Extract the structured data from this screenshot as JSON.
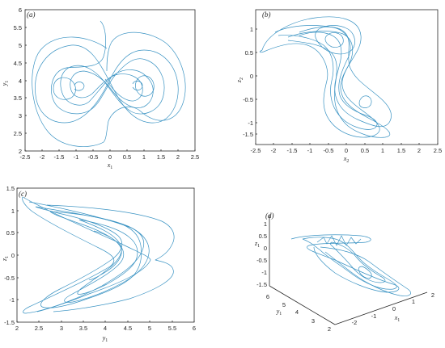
{
  "colors": {
    "trajectory": "#3a93c3",
    "axis": "#262626"
  },
  "chart_data": [
    {
      "type": "line",
      "panel_label": "(a)",
      "xlabel": "x1",
      "ylabel": "y1",
      "xlim": [
        -2.5,
        2.5
      ],
      "ylim": [
        2,
        6
      ],
      "xticks": [
        "-2.5",
        "-2",
        "-1.5",
        "-1",
        "-0.5",
        "0",
        "0.5",
        "1",
        "1.5",
        "2",
        "2.5"
      ],
      "yticks": [
        "2",
        "2.5",
        "3",
        "3.5",
        "4",
        "4.5",
        "5",
        "5.5",
        "6"
      ],
      "series": [
        {
          "x": [
            -1.6,
            -1.2,
            -0.8,
            -0.3,
            0.3,
            0.8,
            1.2,
            1.6
          ],
          "y": [
            3.9,
            4.4,
            4.2,
            3.8,
            3.6,
            3.4,
            3.8,
            4.1
          ]
        }
      ]
    },
    {
      "type": "line",
      "panel_label": "(b)",
      "xlabel": "x2",
      "ylabel": "z2",
      "xlim": [
        -2.5,
        2.5
      ],
      "ylim": [
        -1.5,
        1.25
      ],
      "xticks": [
        "-2.5",
        "-2",
        "-1.5",
        "-1",
        "-0.5",
        "0",
        "0.5",
        "1",
        "1.5",
        "2",
        "2.5"
      ],
      "yticks": [
        "-1.5",
        "-1",
        "-0.5",
        "0",
        "0.5",
        "1"
      ],
      "series": [
        {
          "x": [
            -2.1,
            -1.2,
            -0.5,
            0.3,
            0.9,
            1.4
          ],
          "y": [
            1.05,
            0.8,
            0.3,
            -0.3,
            -0.7,
            -1.1
          ]
        }
      ]
    },
    {
      "type": "line",
      "panel_label": "(c)",
      "xlabel": "y1",
      "ylabel": "z1",
      "xlim": [
        2,
        6
      ],
      "ylim": [
        -1.5,
        1.5
      ],
      "xticks": [
        "2",
        "2.5",
        "3",
        "3.5",
        "4",
        "4.5",
        "5",
        "5.5",
        "6"
      ],
      "yticks": [
        "-1.5",
        "-1",
        "-0.5",
        "0",
        "0.5",
        "1",
        "1.5"
      ],
      "series": [
        {
          "x": [
            2.2,
            3.2,
            4.2,
            4.8,
            3.2,
            2.2
          ],
          "y": [
            1.3,
            1.0,
            0.5,
            0.0,
            -0.9,
            -1.3
          ]
        }
      ]
    },
    {
      "type": "line",
      "panel_label": "(d)",
      "xlabel": "x1",
      "ylabel": "y1",
      "zlabel": "z1",
      "xticks": [
        "-2",
        "-1",
        "0",
        "1",
        "2"
      ],
      "yticks": [
        "2",
        "3",
        "4",
        "5",
        "6"
      ],
      "zticks": [
        "-1.5",
        "-1",
        "-0.5",
        "0",
        "0.5",
        "1"
      ],
      "series": [
        {
          "x": [
            -1.2,
            0.2,
            1.2
          ],
          "y": [
            4.5,
            3.8,
            3.2
          ],
          "z": [
            0.3,
            -0.2,
            -0.9
          ]
        }
      ]
    }
  ]
}
